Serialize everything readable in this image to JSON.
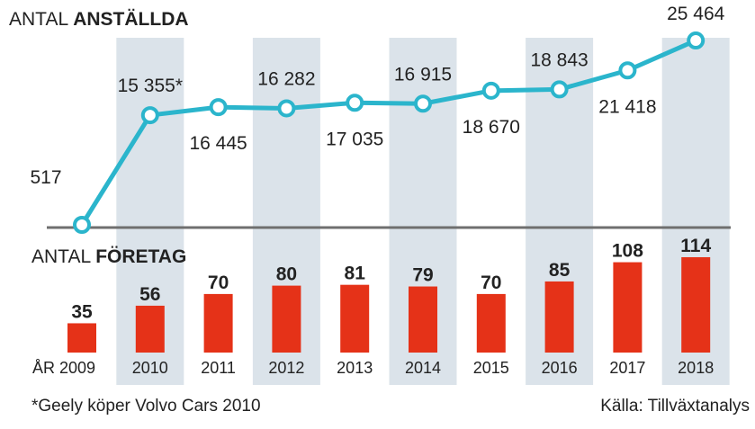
{
  "chart_data": [
    {
      "type": "line",
      "title_light": "ANTAL",
      "title_bold": "ANSTÄLLDA",
      "categories": [
        "2009",
        "2010",
        "2011",
        "2012",
        "2013",
        "2014",
        "2015",
        "2016",
        "2017",
        "2018"
      ],
      "values": [
        517,
        15355,
        16445,
        16282,
        17035,
        16915,
        18670,
        18843,
        21418,
        25464
      ],
      "labels": [
        "517",
        "15 355*",
        "16 445",
        "16 282",
        "17 035",
        "16 915",
        "18 670",
        "18 843",
        "21 418",
        "25 464"
      ],
      "color": "#2bb5cc"
    },
    {
      "type": "bar",
      "title_light": "ANTAL",
      "title_bold": "FÖRETAG",
      "categories": [
        "2009",
        "2010",
        "2011",
        "2012",
        "2013",
        "2014",
        "2015",
        "2016",
        "2017",
        "2018"
      ],
      "year_labels": [
        "ÅR 2009",
        "2010",
        "2011",
        "2012",
        "2013",
        "2014",
        "2015",
        "2016",
        "2017",
        "2018"
      ],
      "values": [
        35,
        56,
        70,
        80,
        81,
        79,
        70,
        85,
        108,
        114
      ],
      "color": "#e53218"
    }
  ],
  "band_color": "#dbe3ea",
  "footnote": "*Geely köper Volvo Cars 2010",
  "source": "Källa: Tillväxtanalys"
}
